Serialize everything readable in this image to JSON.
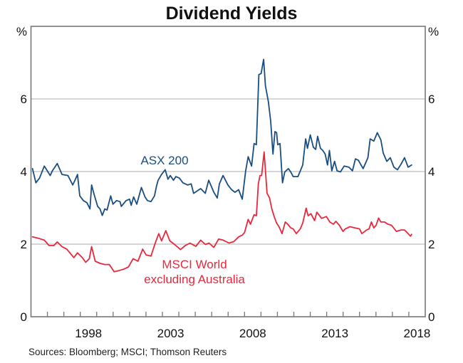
{
  "chart_data": {
    "type": "line",
    "title": "Dividend Yields",
    "ylabel_left": "%",
    "ylabel_right": "%",
    "xlabel": "",
    "xlim": [
      1995,
      2019
    ],
    "ylim": [
      0,
      8
    ],
    "yticks": [
      0,
      2,
      4,
      6
    ],
    "ytick_labels": [
      "0",
      "2",
      "4",
      "6"
    ],
    "xticks_minor_years": [
      1996,
      1997,
      1998,
      1999,
      2000,
      2001,
      2002,
      2003,
      2004,
      2005,
      2006,
      2007,
      2008,
      2009,
      2010,
      2011,
      2012,
      2013,
      2014,
      2015,
      2016,
      2017,
      2018
    ],
    "xtick_labels": [
      {
        "label": "1998",
        "year": 1998
      },
      {
        "label": "2003",
        "year": 2003
      },
      {
        "label": "2008",
        "year": 2008
      },
      {
        "label": "2013",
        "year": 2013
      },
      {
        "label": "2018",
        "year": 2018
      }
    ],
    "grid": "horizontal",
    "source": "Sources: Bloomberg; MSCI; Thomson Reuters",
    "series": [
      {
        "name": "ASX 200",
        "label_lines": [
          "ASX 200"
        ],
        "color": "#1a4d80",
        "x": [
          1995.09,
          1995.3,
          1995.52,
          1995.81,
          1996.17,
          1996.3,
          1996.6,
          1996.89,
          1997.25,
          1997.54,
          1997.68,
          1997.83,
          1997.97,
          1998.19,
          1998.41,
          1998.59,
          1998.69,
          1998.84,
          1999.06,
          1999.2,
          1999.34,
          1999.49,
          1999.63,
          1999.85,
          1999.99,
          2000.21,
          2000.42,
          2000.5,
          2000.79,
          2001.0,
          2001.1,
          2001.25,
          2001.44,
          2001.72,
          2001.94,
          2002.09,
          2002.3,
          2002.52,
          2002.63,
          2002.74,
          2002.95,
          2003.17,
          2003.34,
          2003.48,
          2003.67,
          2003.82,
          2004.03,
          2004.25,
          2004.54,
          2004.75,
          2004.9,
          2005.0,
          2005.33,
          2005.61,
          2005.82,
          2006.13,
          2006.34,
          2006.47,
          2006.69,
          2006.99,
          2007.21,
          2007.42,
          2007.64,
          2007.86,
          2008.07,
          2008.22,
          2008.43,
          2008.58,
          2008.72,
          2008.87,
          2009.01,
          2009.16,
          2009.27,
          2009.45,
          2009.59,
          2009.73,
          2009.85,
          2009.95,
          2010.02,
          2010.16,
          2010.31,
          2010.45,
          2010.67,
          2010.81,
          2010.96,
          2011.25,
          2011.54,
          2011.72,
          2011.83,
          2012.0,
          2012.19,
          2012.33,
          2012.45,
          2012.62,
          2012.76,
          2012.91,
          2013.05,
          2013.17,
          2013.31,
          2013.48,
          2013.63,
          2013.84,
          2014.06,
          2014.35,
          2014.57,
          2014.75,
          2014.93,
          2015.22,
          2015.51,
          2015.65,
          2015.87,
          2016.08,
          2016.3,
          2016.44,
          2016.66,
          2016.87,
          2017.09,
          2017.31,
          2017.52,
          2017.74,
          2017.96,
          2018.17
        ],
        "y": [
          4.08,
          3.69,
          3.82,
          4.15,
          3.89,
          4.02,
          4.22,
          3.92,
          3.89,
          3.63,
          3.76,
          3.92,
          3.33,
          3.2,
          3.14,
          2.97,
          3.63,
          3.37,
          3.04,
          2.97,
          2.79,
          2.97,
          2.94,
          3.33,
          3.1,
          3.2,
          3.17,
          3.04,
          3.2,
          3.24,
          3.07,
          3.3,
          3.1,
          3.56,
          3.3,
          3.2,
          3.17,
          3.33,
          3.58,
          3.76,
          3.92,
          4.05,
          3.79,
          3.89,
          3.76,
          3.86,
          3.82,
          3.69,
          3.63,
          3.66,
          3.4,
          3.43,
          3.53,
          3.4,
          3.76,
          3.43,
          3.27,
          3.66,
          3.89,
          3.63,
          3.5,
          3.43,
          3.5,
          3.24,
          4.02,
          4.41,
          4.15,
          4.77,
          4.74,
          6.67,
          6.7,
          7.09,
          6.37,
          5.92,
          5.39,
          4.48,
          5.1,
          5.07,
          4.74,
          4.77,
          3.69,
          3.99,
          4.08,
          3.99,
          3.86,
          3.86,
          4.18,
          4.9,
          4.64,
          5.01,
          4.67,
          4.61,
          4.97,
          4.64,
          4.58,
          4.48,
          4.18,
          4.58,
          4.02,
          4.28,
          4.02,
          3.99,
          4.15,
          4.12,
          4.02,
          4.35,
          4.31,
          4.08,
          4.38,
          4.9,
          4.84,
          5.07,
          4.87,
          4.51,
          4.28,
          4.38,
          4.12,
          4.05,
          4.2,
          4.38,
          4.12,
          4.18
        ]
      },
      {
        "name": "MSCI World excluding Australia",
        "label_lines": [
          "MSCI World",
          "excluding Australia"
        ],
        "color": "#e8283c",
        "x": [
          1995.09,
          1995.45,
          1995.81,
          1996.1,
          1996.39,
          1996.6,
          1996.89,
          1997.18,
          1997.61,
          1997.83,
          1998.12,
          1998.33,
          1998.55,
          1998.69,
          1998.91,
          1999.2,
          1999.49,
          1999.77,
          2000.06,
          2000.35,
          2000.64,
          2000.93,
          2001.22,
          2001.51,
          2001.8,
          2002.01,
          2002.3,
          2002.59,
          2002.78,
          2002.95,
          2003.21,
          2003.45,
          2003.74,
          2004.1,
          2004.39,
          2004.68,
          2005.04,
          2005.33,
          2005.62,
          2005.84,
          2006.13,
          2006.42,
          2006.7,
          2007.06,
          2007.35,
          2007.64,
          2007.86,
          2008.0,
          2008.22,
          2008.36,
          2008.58,
          2008.72,
          2008.84,
          2008.94,
          2009.04,
          2009.19,
          2009.37,
          2009.52,
          2009.66,
          2009.81,
          2009.95,
          2010.1,
          2010.28,
          2010.48,
          2010.63,
          2010.81,
          2010.96,
          2011.15,
          2011.39,
          2011.54,
          2011.75,
          2011.87,
          2012.04,
          2012.26,
          2012.4,
          2012.69,
          2012.98,
          2013.19,
          2013.41,
          2013.56,
          2013.77,
          2013.99,
          2014.13,
          2014.42,
          2014.71,
          2015.0,
          2015.14,
          2015.43,
          2015.58,
          2015.72,
          2015.87,
          2016.01,
          2016.16,
          2016.3,
          2016.52,
          2016.73,
          2016.95,
          2017.24,
          2017.52,
          2017.74,
          2017.96,
          2018.1,
          2018.17
        ],
        "y": [
          2.2,
          2.16,
          2.11,
          1.96,
          1.96,
          2.06,
          1.93,
          1.86,
          1.63,
          1.76,
          1.63,
          1.5,
          1.6,
          1.93,
          1.53,
          1.47,
          1.44,
          1.44,
          1.24,
          1.27,
          1.31,
          1.37,
          1.6,
          1.53,
          1.86,
          1.7,
          1.67,
          2.06,
          2.29,
          2.09,
          2.37,
          2.09,
          1.99,
          1.85,
          1.96,
          2.03,
          1.94,
          2.11,
          1.99,
          2.03,
          1.91,
          2.14,
          2.11,
          2.03,
          2.07,
          2.2,
          2.25,
          2.32,
          2.68,
          2.55,
          2.81,
          2.78,
          3.66,
          3.89,
          3.89,
          4.54,
          3.4,
          3.27,
          2.97,
          2.75,
          2.58,
          2.48,
          2.29,
          2.61,
          2.55,
          2.45,
          2.42,
          2.29,
          2.42,
          2.58,
          2.99,
          2.78,
          2.84,
          2.65,
          2.88,
          2.71,
          2.76,
          2.61,
          2.55,
          2.63,
          2.52,
          2.35,
          2.42,
          2.48,
          2.45,
          2.42,
          2.29,
          2.39,
          2.42,
          2.61,
          2.45,
          2.52,
          2.72,
          2.61,
          2.61,
          2.55,
          2.52,
          2.35,
          2.39,
          2.39,
          2.29,
          2.22,
          2.27
        ]
      }
    ]
  }
}
